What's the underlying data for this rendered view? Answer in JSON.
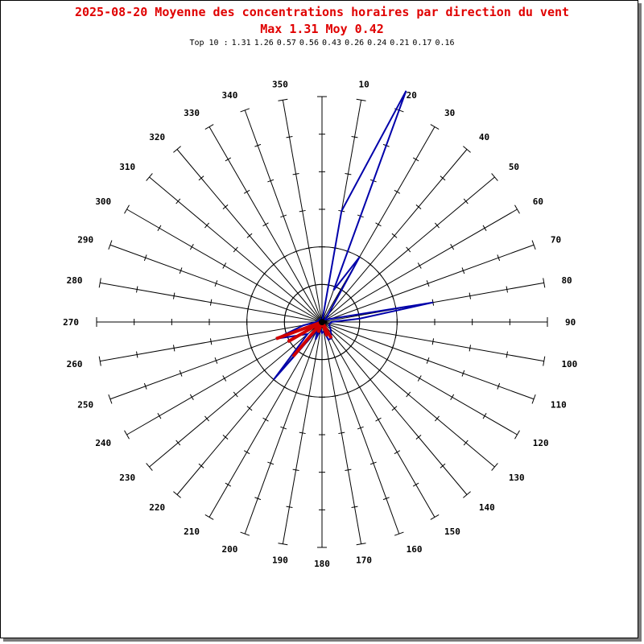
{
  "chart_data": {
    "type": "polar-line",
    "title": "2025-08-20 Moyenne des concentrations horaires par direction du vent",
    "subtitle": "Max 1.31 Moy 0.42",
    "top10_label": "Top 10 :",
    "top10": [
      "1.31",
      "1.26",
      "0.57",
      "0.56",
      "0.43",
      "0.26",
      "0.24",
      "0.21",
      "0.17",
      "0.16"
    ],
    "directions": [
      10,
      20,
      30,
      40,
      50,
      60,
      70,
      80,
      90,
      100,
      110,
      120,
      130,
      140,
      150,
      160,
      170,
      180,
      190,
      200,
      210,
      220,
      230,
      240,
      250,
      260,
      270,
      280,
      290,
      300,
      310,
      320,
      330,
      340,
      350
    ],
    "angle_labels": [
      "10",
      "20",
      "30",
      "40",
      "50",
      "60",
      "70",
      "80",
      "90",
      "100",
      "110",
      "120",
      "130",
      "140",
      "150",
      "160",
      "170",
      "180",
      "190",
      "200",
      "210",
      "220",
      "230",
      "240",
      "250",
      "260",
      "270",
      "280",
      "290",
      "300",
      "310",
      "320",
      "330",
      "340",
      "350"
    ],
    "radial_max": 1.2,
    "radial_rings": [
      0.2,
      0.4
    ],
    "series": [
      {
        "color": "#0000aa",
        "points": [
          {
            "dir": 0,
            "value": 0.0
          },
          {
            "dir": 10,
            "value": 0.6
          },
          {
            "dir": 20,
            "value": 1.31
          },
          {
            "dir": 20,
            "value": 0.18
          },
          {
            "dir": 30,
            "value": 0.4
          },
          {
            "dir": 40,
            "value": 0.05
          },
          {
            "dir": 50,
            "value": 0.02
          },
          {
            "dir": 70,
            "value": 0.05
          },
          {
            "dir": 80,
            "value": 0.6
          },
          {
            "dir": 85,
            "value": 0.2
          },
          {
            "dir": 90,
            "value": 0.05
          },
          {
            "dir": 110,
            "value": 0.04
          },
          {
            "dir": 130,
            "value": 0.06
          },
          {
            "dir": 150,
            "value": 0.1
          },
          {
            "dir": 160,
            "value": 0.1
          },
          {
            "dir": 170,
            "value": 0.05
          },
          {
            "dir": 180,
            "value": 0.06
          },
          {
            "dir": 190,
            "value": 0.04
          },
          {
            "dir": 200,
            "value": 0.1
          },
          {
            "dir": 210,
            "value": 0.05
          },
          {
            "dir": 220,
            "value": 0.4
          },
          {
            "dir": 230,
            "value": 0.1
          },
          {
            "dir": 250,
            "value": 0.26
          },
          {
            "dir": 260,
            "value": 0.1
          },
          {
            "dir": 270,
            "value": 0.03
          },
          {
            "dir": 300,
            "value": 0.02
          },
          {
            "dir": 330,
            "value": 0.02
          },
          {
            "dir": 0,
            "value": 0.0
          }
        ]
      }
    ],
    "red_marks": [
      {
        "dir": 250,
        "value": 0.26
      },
      {
        "dir": 240,
        "value": 0.21
      },
      {
        "dir": 220,
        "value": 0.24
      },
      {
        "dir": 150,
        "value": 0.1
      },
      {
        "dir": 160,
        "value": 0.08
      },
      {
        "dir": 200,
        "value": 0.06
      }
    ]
  }
}
